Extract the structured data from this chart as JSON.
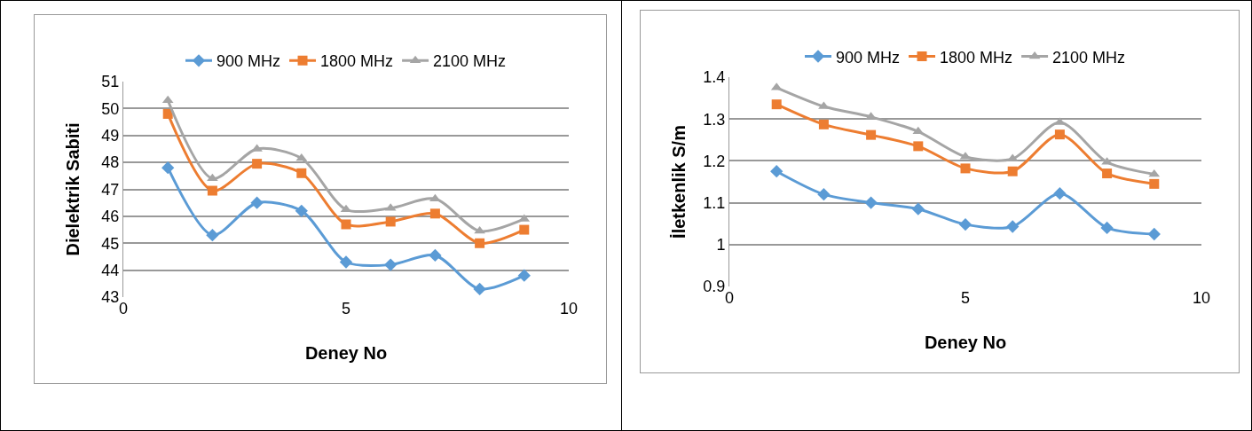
{
  "chart_data": [
    {
      "type": "line",
      "xlabel": "Deney No",
      "ylabel": "Dielektrik Sabiti",
      "x": [
        1,
        2,
        3,
        4,
        5,
        6,
        7,
        8,
        9
      ],
      "xlim": [
        0,
        10
      ],
      "xticks": [
        0,
        5,
        10
      ],
      "ylim": [
        43,
        51
      ],
      "yticks": [
        43,
        44,
        45,
        46,
        47,
        48,
        49,
        50,
        51
      ],
      "grid": "y",
      "legend": "top",
      "series": [
        {
          "name": "900 MHz",
          "color": "#5b9bd5",
          "marker": "diamond",
          "values": [
            47.8,
            45.3,
            46.5,
            46.2,
            44.3,
            44.2,
            44.55,
            43.3,
            43.8
          ]
        },
        {
          "name": "1800 MHz",
          "color": "#ed7d31",
          "marker": "square",
          "values": [
            49.8,
            46.95,
            47.95,
            47.6,
            45.7,
            45.8,
            46.1,
            45.0,
            45.5
          ]
        },
        {
          "name": "2100 MHz",
          "color": "#a5a5a5",
          "marker": "triangle",
          "values": [
            50.3,
            47.4,
            48.5,
            48.15,
            46.25,
            46.3,
            46.65,
            45.45,
            45.9
          ]
        }
      ]
    },
    {
      "type": "line",
      "xlabel": "Deney No",
      "ylabel": "İletkenlik S/m",
      "x": [
        1,
        2,
        3,
        4,
        5,
        6,
        7,
        8,
        9
      ],
      "xlim": [
        0,
        10
      ],
      "xticks": [
        0,
        5,
        10
      ],
      "ylim": [
        0.9,
        1.4
      ],
      "yticks": [
        {
          "value": 0.9,
          "label": "0.9"
        },
        {
          "value": 1,
          "label": "1"
        },
        {
          "value": 1.1,
          "label": "1.1"
        },
        {
          "value": 1.2,
          "label": "1.2"
        },
        {
          "value": 1.3,
          "label": "1.3"
        },
        {
          "value": 1.4,
          "label": "1.4"
        }
      ],
      "grid": "y",
      "legend": "top",
      "series": [
        {
          "name": "900 MHz",
          "color": "#5b9bd5",
          "marker": "diamond",
          "values": [
            1.175,
            1.12,
            1.1,
            1.085,
            1.048,
            1.043,
            1.122,
            1.04,
            1.025
          ]
        },
        {
          "name": "1800 MHz",
          "color": "#ed7d31",
          "marker": "square",
          "values": [
            1.335,
            1.287,
            1.262,
            1.235,
            1.182,
            1.175,
            1.263,
            1.17,
            1.145
          ]
        },
        {
          "name": "2100 MHz",
          "color": "#a5a5a5",
          "marker": "triangle",
          "values": [
            1.375,
            1.33,
            1.305,
            1.27,
            1.21,
            1.205,
            1.292,
            1.197,
            1.168
          ]
        }
      ]
    }
  ]
}
